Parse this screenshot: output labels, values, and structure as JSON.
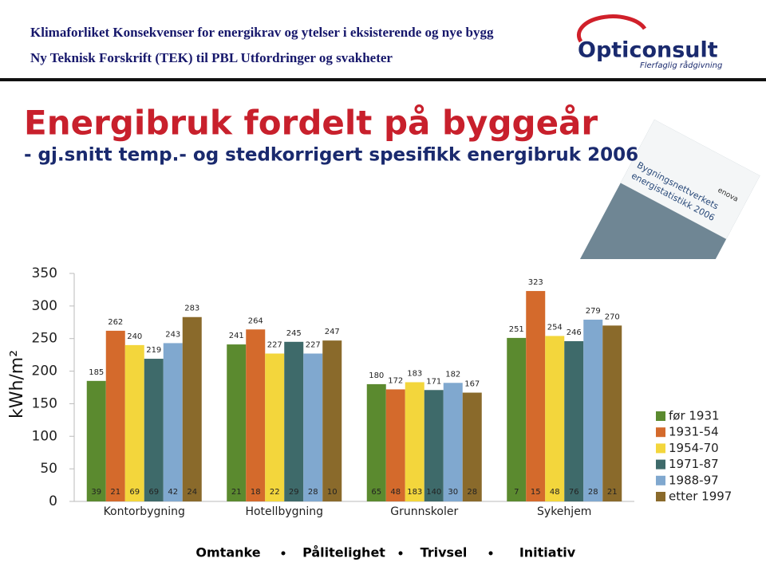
{
  "header": {
    "line1": "Klimaforliket  Konsekvenser for energikrav og ytelser i eksisterende og nye bygg",
    "line2": "Ny Teknisk Forskrift (TEK) til PBL  Utfordringer og svakheter",
    "logo": "Opticonsult",
    "logo_tagline": "Flerfaglig rådgivning"
  },
  "slide_title": "Energibruk fordelt på byggeår",
  "slide_subtitle": "- gj.snitt temp.- og stedkorrigert spesifikk energibruk 2006",
  "book_cover": {
    "title_line1": "Bygningsnettverkets",
    "title_line2": "energistatistikk 2006",
    "brand": "enova"
  },
  "chart_data": {
    "type": "bar",
    "ylabel": "kWh/m²",
    "categories": [
      "Kontorbygning",
      "Hotellbygning",
      "Grunnskoler",
      "Sykehjem"
    ],
    "ylim": [
      0,
      350
    ],
    "yticks": [
      0,
      50,
      100,
      150,
      200,
      250,
      300,
      350
    ],
    "grid": false,
    "legend": "right",
    "series": [
      {
        "name": "før 1931",
        "color": "#5b8a2f",
        "values": [
          185,
          241,
          180,
          251
        ],
        "counts": [
          39,
          21,
          65,
          7
        ]
      },
      {
        "name": "1931-54",
        "color": "#d46a2c",
        "values": [
          262,
          264,
          172,
          323
        ],
        "counts": [
          21,
          18,
          48,
          15
        ]
      },
      {
        "name": "1954-70",
        "color": "#f3d63c",
        "values": [
          240,
          227,
          183,
          254
        ],
        "counts": [
          69,
          22,
          183,
          48
        ]
      },
      {
        "name": "1971-87",
        "color": "#3e6a6a",
        "values": [
          219,
          245,
          171,
          246
        ],
        "counts": [
          69,
          29,
          140,
          76
        ]
      },
      {
        "name": "1988-97",
        "color": "#80a8cf",
        "values": [
          243,
          227,
          182,
          279
        ],
        "counts": [
          42,
          28,
          30,
          28
        ]
      },
      {
        "name": "etter 1997",
        "color": "#8a6a2b",
        "values": [
          283,
          247,
          167,
          270
        ],
        "counts": [
          24,
          10,
          28,
          21
        ]
      }
    ]
  },
  "footer": [
    "Omtanke",
    "Pålitelighet",
    "Trivsel",
    "Initiativ"
  ]
}
